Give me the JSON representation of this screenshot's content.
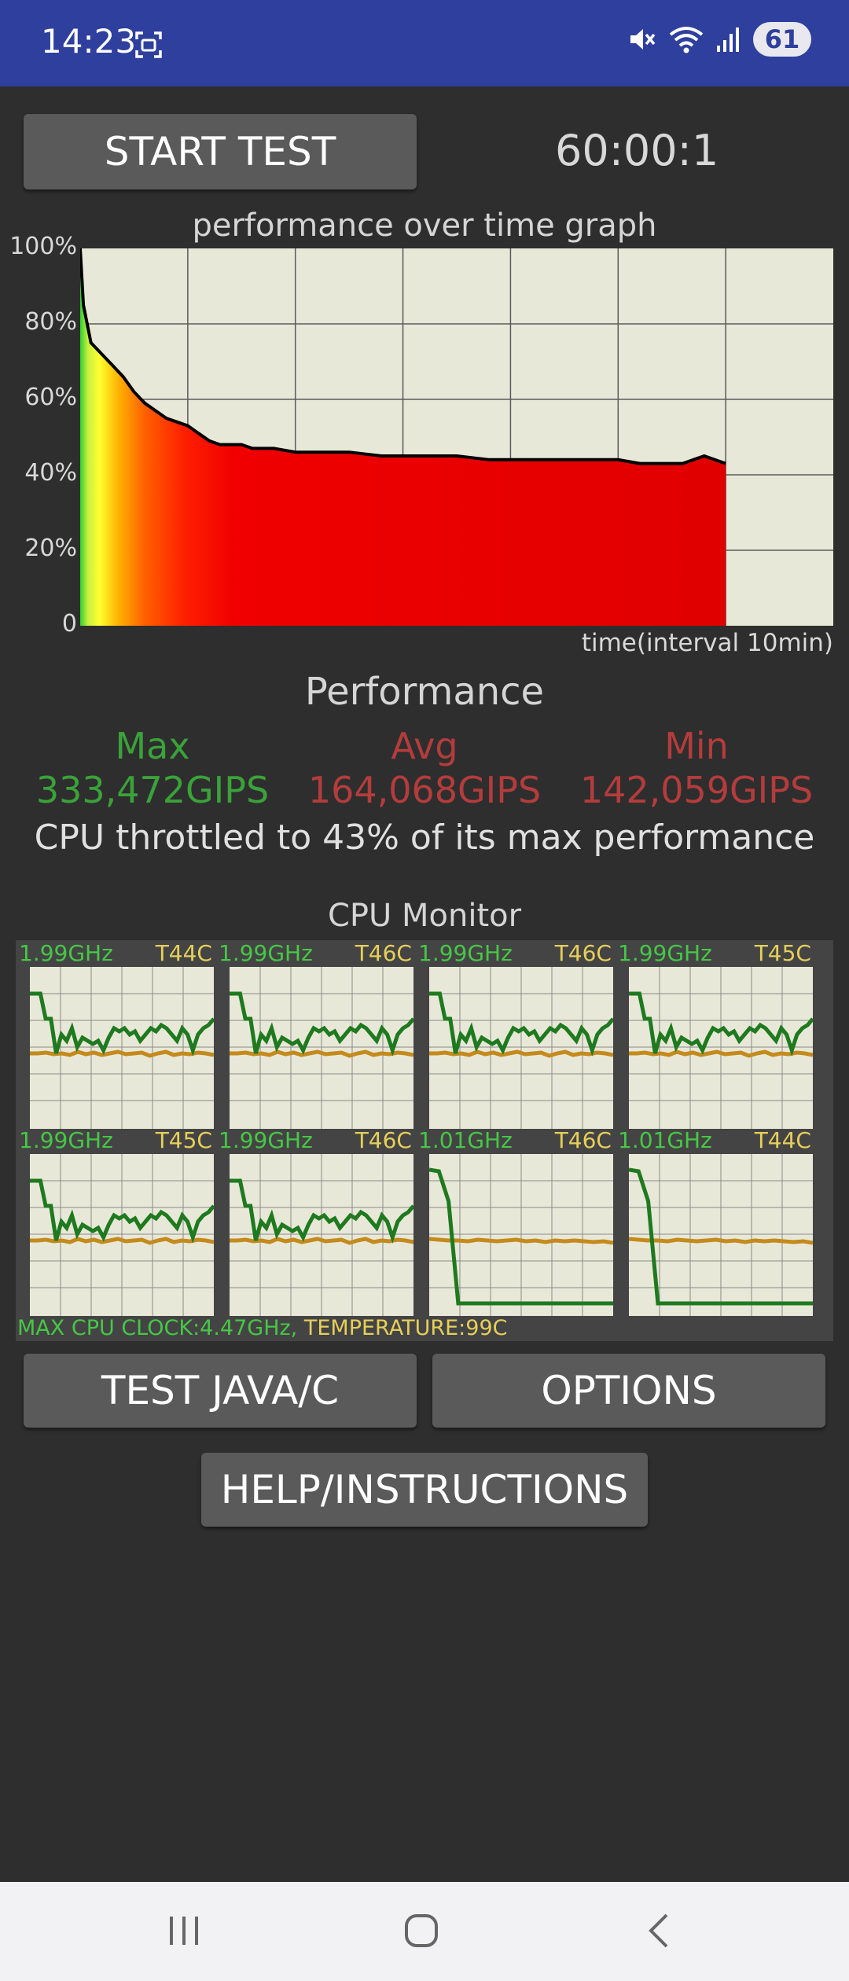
{
  "status_bar": {
    "time": "14:23",
    "battery": "61",
    "icons": [
      "screen-recorder-icon",
      "mute-icon",
      "wifi-icon",
      "signal-icon",
      "battery-icon"
    ]
  },
  "controls": {
    "start_test": "START TEST",
    "timer": "60:00:1",
    "test_java_c": "TEST JAVA/C",
    "options": "OPTIONS",
    "help": "HELP/INSTRUCTIONS"
  },
  "performance_graph": {
    "title": "performance over time graph",
    "xlabel": "time(interval 10min)",
    "y_ticks": [
      "100%",
      "80%",
      "60%",
      "40%",
      "20%",
      "0"
    ]
  },
  "chart_data": {
    "type": "area",
    "title": "performance over time graph",
    "xlabel": "time(interval 10min)",
    "ylabel": "",
    "ylim": [
      0,
      100
    ],
    "xlim": [
      0,
      70
    ],
    "x_unit": "min",
    "grid": true,
    "x": [
      0,
      0.3,
      1,
      2,
      3,
      4,
      5,
      6,
      7,
      8,
      9,
      10,
      11,
      12,
      13,
      14,
      15,
      16,
      17,
      18,
      20,
      22,
      25,
      28,
      30,
      33,
      35,
      38,
      40,
      43,
      45,
      48,
      50,
      52,
      54,
      55,
      56,
      58,
      60
    ],
    "values": [
      100,
      85,
      75,
      72,
      69,
      66,
      62,
      59,
      57,
      55,
      54,
      53,
      51,
      49,
      48,
      48,
      48,
      47,
      47,
      47,
      46,
      46,
      46,
      45,
      45,
      45,
      45,
      44,
      44,
      44,
      44,
      44,
      44,
      43,
      43,
      43,
      43,
      45,
      43
    ]
  },
  "performance": {
    "title": "Performance",
    "max_label": "Max",
    "avg_label": "Avg",
    "min_label": "Min",
    "max_value": "333,472GIPS",
    "avg_value": "164,068GIPS",
    "min_value": "142,059GIPS",
    "throttle_text": "CPU throttled to 43% of its max performance"
  },
  "cpu_monitor": {
    "title": "CPU Monitor",
    "cores": [
      {
        "freq": "1.99GHz",
        "temp": "T44C",
        "pattern": "active"
      },
      {
        "freq": "1.99GHz",
        "temp": "T46C",
        "pattern": "active"
      },
      {
        "freq": "1.99GHz",
        "temp": "T46C",
        "pattern": "active"
      },
      {
        "freq": "1.99GHz",
        "temp": "T45C",
        "pattern": "active"
      },
      {
        "freq": "1.99GHz",
        "temp": "T45C",
        "pattern": "active"
      },
      {
        "freq": "1.99GHz",
        "temp": "T46C",
        "pattern": "active"
      },
      {
        "freq": "1.01GHz",
        "temp": "T46C",
        "pattern": "idle"
      },
      {
        "freq": "1.01GHz",
        "temp": "T44C",
        "pattern": "idle"
      }
    ],
    "max_clock": "MAX CPU CLOCK:4.47GHz,",
    "temperature": "TEMPERATURE:99C"
  }
}
